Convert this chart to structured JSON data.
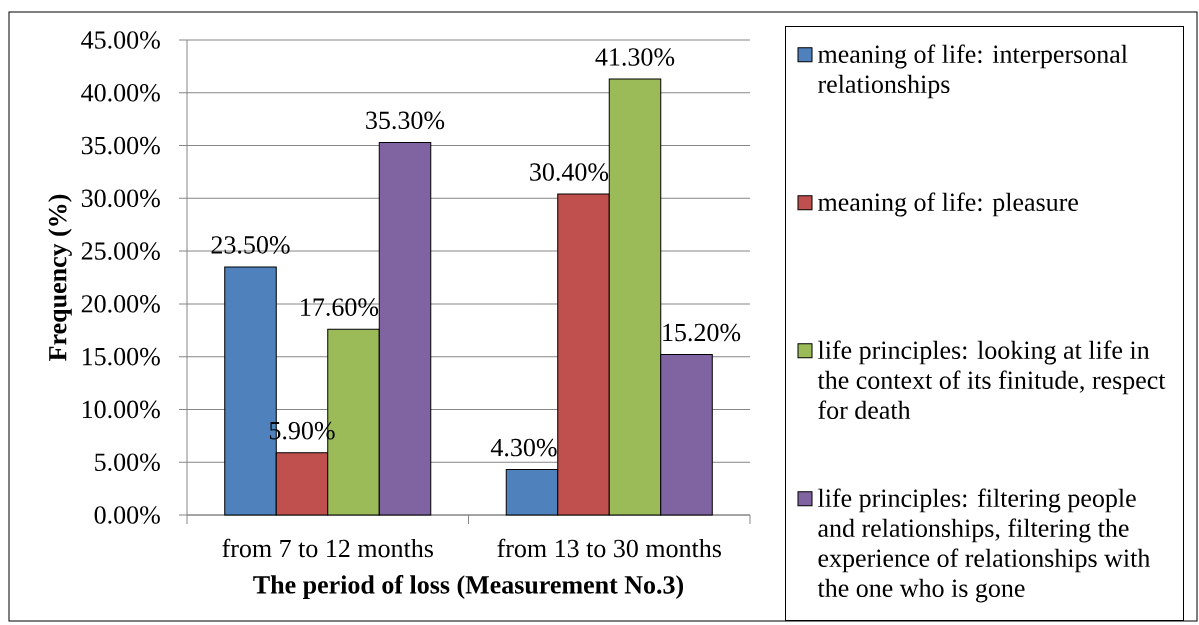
{
  "chart_data": {
    "type": "bar",
    "xlabel": "The period of loss (Measurement No.3)",
    "ylabel": "Frequency (%)",
    "categories": [
      "from 7 to 12 months",
      "from 13 to 30 months"
    ],
    "series": [
      {
        "name": "meaning of life: interpersonal relationships",
        "color": "#4f81bd",
        "values": [
          23.5,
          4.3
        ],
        "value_labels": [
          "23.50%",
          "4.30%"
        ]
      },
      {
        "name": "meaning of life: pleasure",
        "color": "#c0504d",
        "values": [
          5.9,
          30.4
        ],
        "value_labels": [
          "5.90%",
          "30.40%"
        ]
      },
      {
        "name": "life principles: looking at life in the context of its finitude, respect for death",
        "color": "#9bbb59",
        "values": [
          17.6,
          41.3
        ],
        "value_labels": [
          "17.60%",
          "41.30%"
        ]
      },
      {
        "name": "life principles: filtering people and relationships, filtering the experience of relationships with the one who is gone",
        "color": "#8064a2",
        "values": [
          35.3,
          15.2
        ],
        "value_labels": [
          "35.30%",
          "15.20%"
        ]
      }
    ],
    "ylim": [
      0,
      45
    ],
    "yticks": [
      {
        "value": 0,
        "label": "0.00%"
      },
      {
        "value": 5,
        "label": "5.00%"
      },
      {
        "value": 10,
        "label": "10.00%"
      },
      {
        "value": 15,
        "label": "15.00%"
      },
      {
        "value": 20,
        "label": "20.00%"
      },
      {
        "value": 25,
        "label": "25.00%"
      },
      {
        "value": 30,
        "label": "30.00%"
      },
      {
        "value": 35,
        "label": "35.00%"
      },
      {
        "value": 40,
        "label": "40.00%"
      },
      {
        "value": 45,
        "label": "45.00%"
      }
    ],
    "grid": "y",
    "legend": "right"
  }
}
